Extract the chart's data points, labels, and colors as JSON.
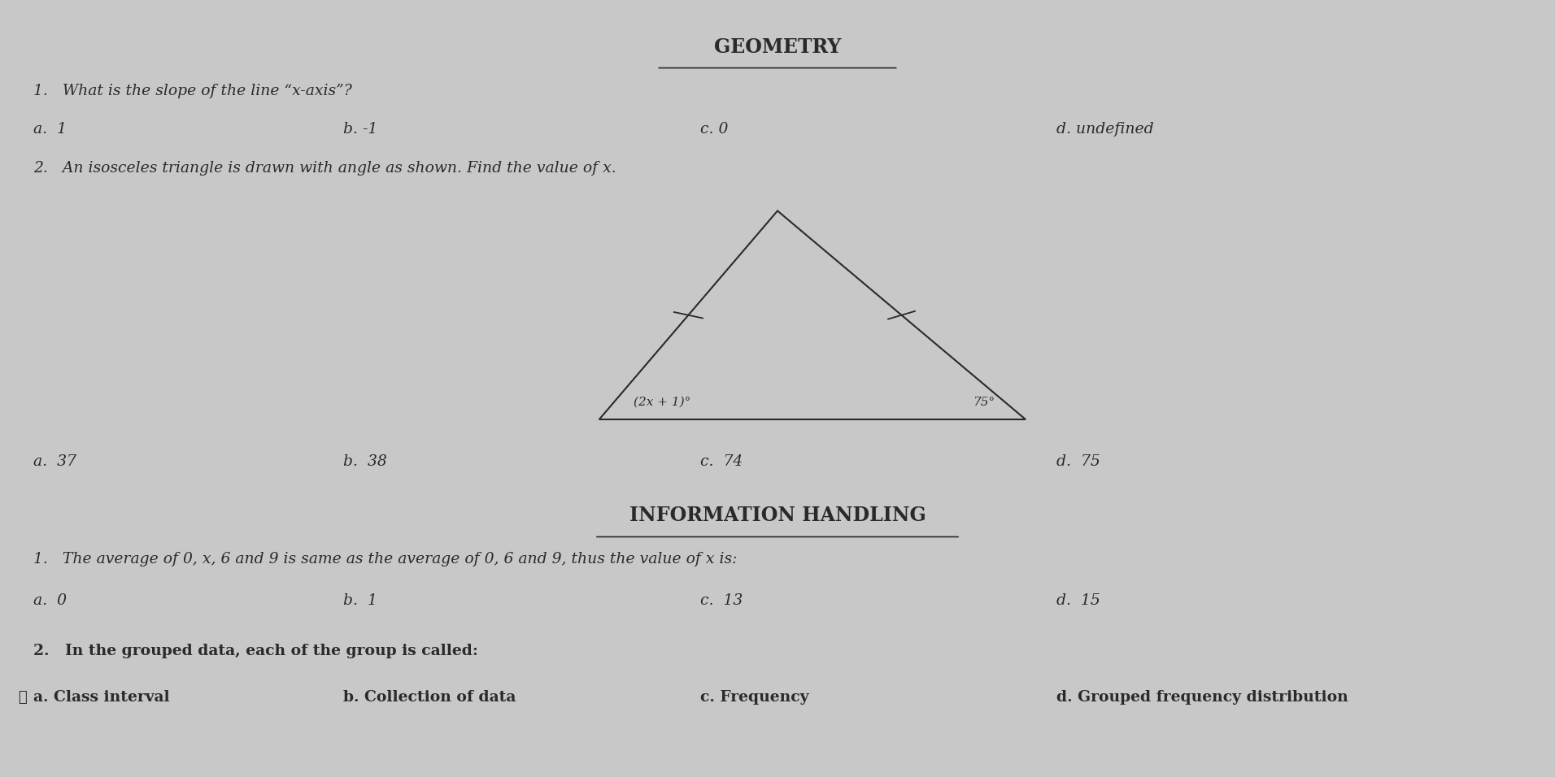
{
  "bg_color": "#c8c8c8",
  "text_color": "#2a2a2a",
  "title_geometry": "GEOMETRY",
  "title_info": "INFORMATION HANDLING",
  "q1_geo": "1.   What is the slope of the line “x-axis”?",
  "q1_geo_options": [
    "a.  1",
    "b. -1",
    "c. 0",
    "d. undefined"
  ],
  "q2_geo": "2.   An isosceles triangle is drawn with angle as shown. Find the value of x.",
  "q2_geo_options": [
    "a.  37",
    "b.  38",
    "c.  74",
    "d.  75"
  ],
  "triangle_label_left": "(2x + 1)°",
  "triangle_label_right": "75°",
  "q1_info": "1.   The average of 0, x, 6 and 9 is same as the average of 0, 6 and 9, thus the value of x is:",
  "q1_info_options": [
    "a.  0",
    "b.  1",
    "c.  13",
    "d.  15"
  ],
  "q2_info": "2.   In the grouped data, each of the group is called:",
  "q2_info_options": [
    "a. Class interval",
    "b. Collection of data",
    "c. Frequency",
    "d. Grouped frequency distribution"
  ]
}
